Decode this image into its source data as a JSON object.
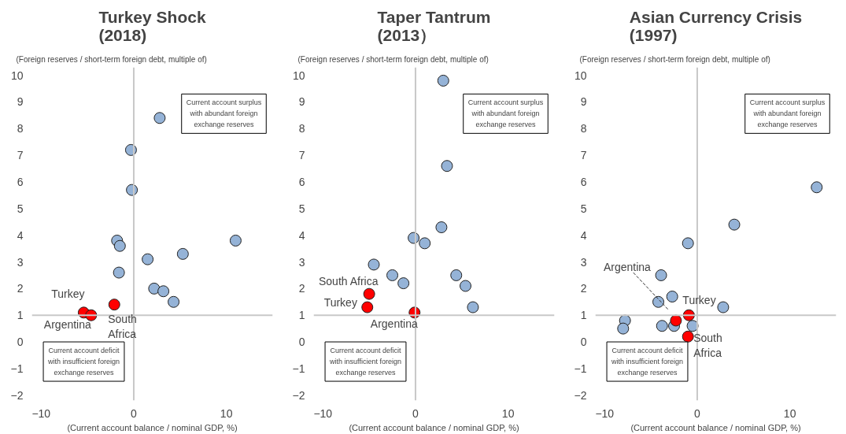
{
  "chart_data": [
    {
      "type": "scatter",
      "title": "Turkey Shock\n(2018)",
      "ylabel": "(Foreign reserves / short-term foreign debt, multiple  of)",
      "xlabel": "(Current account balance / nominal GDP, %)",
      "xlim": [
        -11,
        15
      ],
      "ylim": [
        -2.2,
        10.3
      ],
      "xticks": [
        -10,
        0,
        10
      ],
      "yticks": [
        -2,
        -1,
        0,
        1,
        2,
        3,
        4,
        5,
        6,
        7,
        8,
        9,
        10
      ],
      "grid": false,
      "legend": false,
      "marker": "circle",
      "ref_lines": [
        {
          "axis": "x",
          "value": 0
        },
        {
          "axis": "y",
          "value": 1
        }
      ],
      "annotations": [
        "Current account surplus with abundant foreign exchange reserves",
        "Current account deficit with insufficient foreign exchange reserves"
      ],
      "series": [
        {
          "color": "#95b3d7",
          "x": [
            2.8,
            -0.3,
            -0.2,
            -1.8,
            -1.5,
            1.5,
            -1.6,
            2.2,
            3.2,
            4.3,
            5.3,
            11.0
          ],
          "values": [
            8.4,
            7.2,
            5.7,
            3.8,
            3.6,
            3.1,
            2.6,
            2.0,
            1.9,
            1.5,
            3.3,
            3.8
          ]
        },
        {
          "name": "Turkey",
          "color": "#ff0000",
          "x": [
            -5.4
          ],
          "values": [
            1.1
          ]
        },
        {
          "name": "Argentina",
          "color": "#ff0000",
          "x": [
            -4.6
          ],
          "values": [
            1.0
          ]
        },
        {
          "name": "South Africa",
          "color": "#ff0000",
          "x": [
            -2.1
          ],
          "values": [
            1.4
          ]
        }
      ]
    },
    {
      "type": "scatter",
      "title": "Taper Tantrum\n(2013）",
      "ylabel": "(Foreign reserves / short-term foreign debt, multiple  of)",
      "xlabel": "(Current account balance / nominal GDP, %)",
      "xlim": [
        -11,
        15
      ],
      "ylim": [
        -2.2,
        10.3
      ],
      "xticks": [
        -10,
        0,
        10
      ],
      "yticks": [
        -2,
        -1,
        0,
        1,
        2,
        3,
        4,
        5,
        6,
        7,
        8,
        9,
        10
      ],
      "grid": false,
      "legend": false,
      "marker": "circle",
      "ref_lines": [
        {
          "axis": "x",
          "value": 0
        },
        {
          "axis": "y",
          "value": 1
        }
      ],
      "annotations": [
        "Current account surplus with abundant foreign exchange reserves",
        "Current account deficit with insufficient foreign exchange reserves"
      ],
      "series": [
        {
          "color": "#95b3d7",
          "x": [
            3.0,
            3.4,
            2.8,
            -0.2,
            1.0,
            -4.5,
            -2.5,
            -1.3,
            4.4,
            5.4,
            6.2
          ],
          "values": [
            9.8,
            6.6,
            4.3,
            3.9,
            3.7,
            2.9,
            2.5,
            2.2,
            2.5,
            2.1,
            1.3
          ]
        },
        {
          "name": "South Africa",
          "color": "#ff0000",
          "x": [
            -5.0
          ],
          "values": [
            1.8
          ]
        },
        {
          "name": "Turkey",
          "color": "#ff0000",
          "x": [
            -5.2
          ],
          "values": [
            1.3
          ]
        },
        {
          "name": "Argentina",
          "color": "#ff0000",
          "x": [
            -0.1
          ],
          "values": [
            1.1
          ]
        }
      ]
    },
    {
      "type": "scatter",
      "title": "Asian Currency Crisis\n(1997)",
      "ylabel": "(Foreign reserves / short-term foreign debt, multiple  of)",
      "xlabel": "(Current account balance / nominal GDP, %)",
      "xlim": [
        -11,
        15
      ],
      "ylim": [
        -2.2,
        10.3
      ],
      "xticks": [
        -10,
        0,
        10
      ],
      "yticks": [
        -2,
        -1,
        0,
        1,
        2,
        3,
        4,
        5,
        6,
        7,
        8,
        9,
        10
      ],
      "grid": false,
      "legend": false,
      "marker": "circle",
      "ref_lines": [
        {
          "axis": "x",
          "value": 0
        },
        {
          "axis": "y",
          "value": 1
        }
      ],
      "annotations": [
        "Current account surplus with abundant foreign exchange reserves",
        "Current account deficit with insufficient foreign exchange reserves"
      ],
      "series": [
        {
          "color": "#95b3d7",
          "x": [
            12.9,
            4.0,
            -1.0,
            -3.9,
            -4.2,
            -2.7,
            2.8,
            -7.8,
            -8.0,
            -3.8,
            -2.5,
            -0.5
          ],
          "values": [
            5.8,
            4.4,
            3.7,
            2.5,
            1.5,
            1.7,
            1.3,
            0.8,
            0.5,
            0.6,
            0.6,
            0.6
          ]
        },
        {
          "name": "Argentina",
          "color": "#ff0000",
          "x": [
            -2.3
          ],
          "values": [
            0.8
          ]
        },
        {
          "name": "Turkey",
          "color": "#ff0000",
          "x": [
            -0.9
          ],
          "values": [
            1.0
          ]
        },
        {
          "name": "South Africa",
          "color": "#ff0000",
          "x": [
            -1.0
          ],
          "values": [
            0.2
          ]
        }
      ]
    }
  ]
}
